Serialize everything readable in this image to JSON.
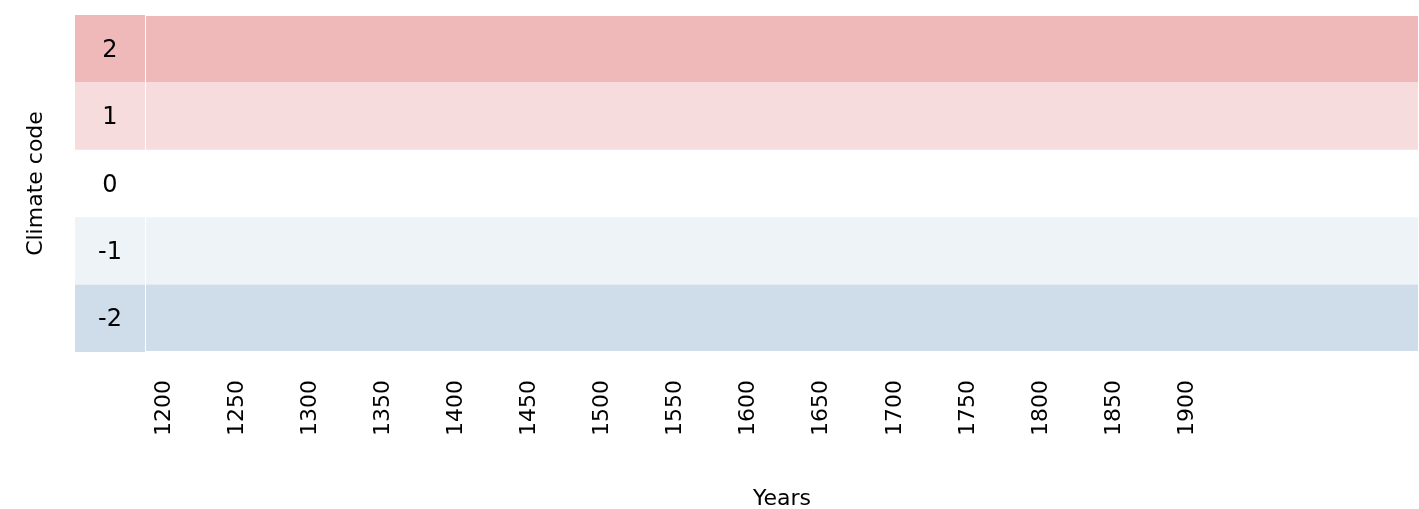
{
  "chart_data": {
    "type": "line",
    "xlabel": "Years",
    "ylabel": "Climate code",
    "xlim": [
      1188,
      2060
    ],
    "ylim": [
      -2.5,
      2.5
    ],
    "xticks": [
      1200,
      1250,
      1300,
      1350,
      1400,
      1450,
      1500,
      1550,
      1600,
      1650,
      1700,
      1750,
      1800,
      1850,
      1900
    ],
    "yticks": [
      2,
      1,
      0,
      -1,
      -2
    ],
    "bands": [
      {
        "axis": "y",
        "from": 1.5,
        "to": 2.5,
        "color": "#f0b9b9"
      },
      {
        "axis": "y",
        "from": 0.5,
        "to": 1.5,
        "color": "#f6dcdd"
      },
      {
        "axis": "y",
        "from": -1.5,
        "to": -0.5,
        "color": "#eef3f7"
      },
      {
        "axis": "y",
        "from": -2.5,
        "to": -1.5,
        "color": "#cfdcea"
      }
    ]
  }
}
